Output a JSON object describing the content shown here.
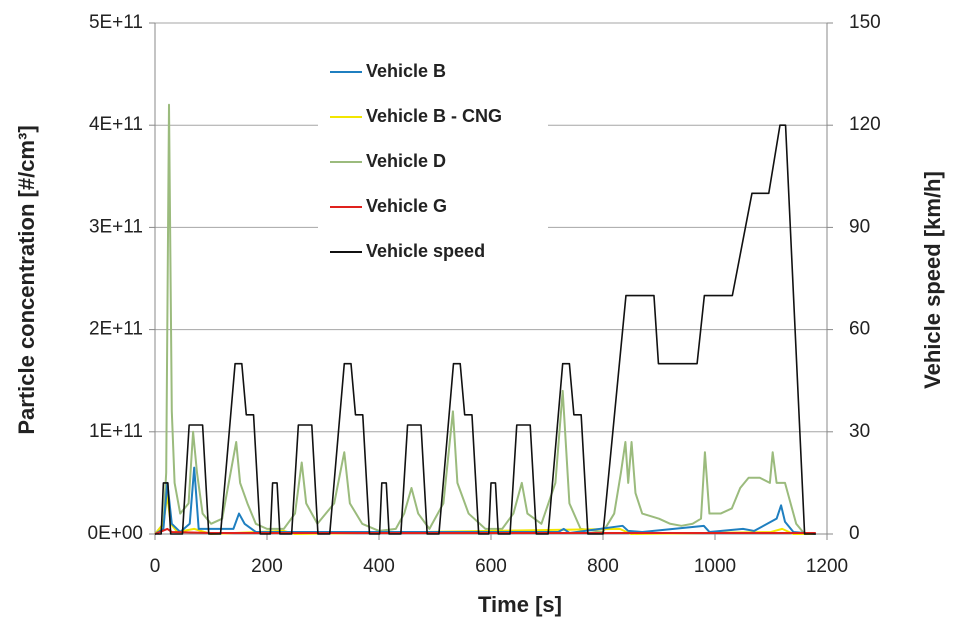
{
  "chart_data": {
    "type": "line",
    "x_label": "Time [s]",
    "y_label": "Particle concentration [#/cm³]",
    "y2_label": "Vehicle speed [km/h]",
    "xlim": [
      0,
      1200
    ],
    "xticks": [
      0,
      200,
      400,
      600,
      800,
      1000,
      1200
    ],
    "ylim": [
      0,
      500000000000.0
    ],
    "yticks": [
      {
        "value": 0,
        "label": "0E+00"
      },
      {
        "value": 100000000000.0,
        "label": "1E+11"
      },
      {
        "value": 200000000000.0,
        "label": "2E+11"
      },
      {
        "value": 300000000000.0,
        "label": "3E+11"
      },
      {
        "value": 400000000000.0,
        "label": "4E+11"
      },
      {
        "value": 500000000000.0,
        "label": "5E+11"
      }
    ],
    "y2lim": [
      0,
      150
    ],
    "y2ticks": [
      0,
      30,
      60,
      90,
      120,
      150
    ],
    "grid": true,
    "series": [
      {
        "name": "Vehicle B",
        "color": "#1f7fc0",
        "x": [
          0,
          15,
          22,
          30,
          45,
          62,
          70,
          78,
          140,
          150,
          160,
          180,
          260,
          340,
          530,
          720,
          730,
          740,
          835,
          845,
          870,
          980,
          990,
          1050,
          1070,
          1110,
          1118,
          1125,
          1140,
          1180
        ],
        "values": [
          0,
          5000000000.0,
          50000000000.0,
          10000000000.0,
          2000000000.0,
          10000000000.0,
          65000000000.0,
          5000000000.0,
          5000000000.0,
          20000000000.0,
          10000000000.0,
          2000000000.0,
          2000000000.0,
          2000000000.0,
          2000000000.0,
          2000000000.0,
          5000000000.0,
          1000000000.0,
          8000000000.0,
          3000000000.0,
          2000000000.0,
          8000000000.0,
          2000000000.0,
          5000000000.0,
          3000000000.0,
          15000000000.0,
          28000000000.0,
          12000000000.0,
          2000000000.0,
          0
        ]
      },
      {
        "name": "Vehicle B - CNG",
        "color": "#f2e600",
        "x": [
          0,
          15,
          22,
          28,
          40,
          70,
          100,
          230,
          250,
          830,
          850,
          1100,
          1120,
          1140,
          1180
        ],
        "values": [
          0,
          10000000000.0,
          38000000000.0,
          10000000000.0,
          2000000000.0,
          5000000000.0,
          0,
          3000000000.0,
          0,
          5000000000.0,
          0,
          2000000000.0,
          5000000000.0,
          0,
          0
        ]
      },
      {
        "name": "Vehicle D",
        "color": "#9bbb7d",
        "x": [
          0,
          15,
          20,
          25,
          30,
          35,
          45,
          60,
          68,
          75,
          85,
          100,
          120,
          135,
          145,
          152,
          165,
          180,
          200,
          230,
          250,
          262,
          270,
          290,
          320,
          338,
          348,
          370,
          400,
          430,
          445,
          458,
          470,
          490,
          515,
          532,
          540,
          560,
          590,
          620,
          640,
          655,
          665,
          690,
          715,
          728,
          740,
          760,
          800,
          820,
          832,
          840,
          845,
          851,
          858,
          870,
          900,
          920,
          940,
          960,
          975,
          982,
          990,
          1010,
          1030,
          1045,
          1060,
          1080,
          1098,
          1103,
          1110,
          1125,
          1135,
          1145,
          1160,
          1180
        ],
        "values": [
          0,
          10000000000.0,
          60000000000.0,
          420000000000.0,
          120000000000.0,
          50000000000.0,
          20000000000.0,
          30000000000.0,
          100000000000.0,
          60000000000.0,
          20000000000.0,
          10000000000.0,
          15000000000.0,
          60000000000.0,
          90000000000.0,
          50000000000.0,
          30000000000.0,
          10000000000.0,
          5000000000.0,
          5000000000.0,
          20000000000.0,
          70000000000.0,
          30000000000.0,
          10000000000.0,
          30000000000.0,
          80000000000.0,
          30000000000.0,
          10000000000.0,
          3000000000.0,
          5000000000.0,
          20000000000.0,
          45000000000.0,
          20000000000.0,
          5000000000.0,
          30000000000.0,
          120000000000.0,
          50000000000.0,
          20000000000.0,
          5000000000.0,
          5000000000.0,
          20000000000.0,
          50000000000.0,
          20000000000.0,
          10000000000.0,
          50000000000.0,
          140000000000.0,
          30000000000.0,
          5000000000.0,
          2000000000.0,
          20000000000.0,
          60000000000.0,
          90000000000.0,
          50000000000.0,
          90000000000.0,
          40000000000.0,
          20000000000.0,
          15000000000.0,
          10000000000.0,
          8000000000.0,
          10000000000.0,
          15000000000.0,
          80000000000.0,
          20000000000.0,
          20000000000.0,
          25000000000.0,
          45000000000.0,
          55000000000.0,
          55000000000.0,
          50000000000.0,
          80000000000.0,
          50000000000.0,
          50000000000.0,
          30000000000.0,
          10000000000.0,
          0,
          0
        ]
      },
      {
        "name": "Vehicle G",
        "color": "#e0211d",
        "x": [
          0,
          22,
          30,
          100,
          1180
        ],
        "values": [
          0,
          5000000000.0,
          2000000000.0,
          1000000000.0,
          1000000000.0
        ]
      },
      {
        "name": "Vehicle speed",
        "color": "#111111",
        "axis": "y2",
        "x": [
          0,
          11,
          15,
          23,
          28,
          49,
          61,
          85,
          96,
          117,
          143,
          155,
          163,
          176,
          188,
          195,
          206,
          210,
          218,
          223,
          244,
          256,
          280,
          291,
          312,
          338,
          350,
          358,
          371,
          383,
          390,
          401,
          405,
          413,
          418,
          439,
          451,
          475,
          486,
          507,
          533,
          545,
          553,
          566,
          578,
          585,
          596,
          600,
          608,
          613,
          634,
          646,
          670,
          681,
          702,
          728,
          740,
          748,
          761,
          773,
          800,
          841,
          891,
          899,
          968,
          981,
          1031,
          1066,
          1096,
          1116,
          1126,
          1160,
          1180
        ],
        "values": [
          0,
          0,
          15,
          15,
          0,
          0,
          32,
          32,
          0,
          0,
          50,
          50,
          35,
          35,
          0,
          0,
          0,
          15,
          15,
          0,
          0,
          32,
          32,
          0,
          0,
          50,
          50,
          35,
          35,
          0,
          0,
          0,
          15,
          15,
          0,
          0,
          32,
          32,
          0,
          0,
          50,
          50,
          35,
          35,
          0,
          0,
          0,
          15,
          15,
          0,
          0,
          32,
          32,
          0,
          0,
          50,
          50,
          35,
          35,
          0,
          0,
          70,
          70,
          50,
          50,
          70,
          70,
          100,
          100,
          120,
          120,
          0,
          0
        ]
      }
    ]
  }
}
